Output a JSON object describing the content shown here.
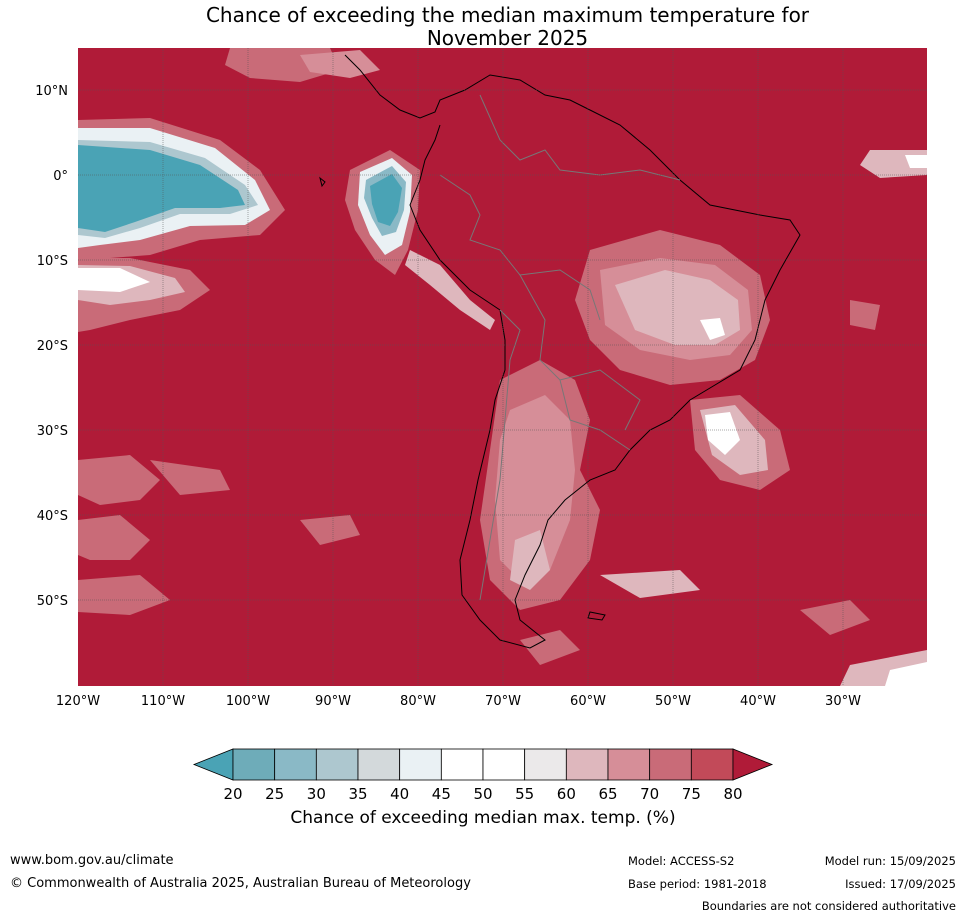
{
  "title": {
    "line1": "Chance of exceeding the median maximum temperature for",
    "line2": "November 2025"
  },
  "map": {
    "lon_ticks": [
      "120°W",
      "110°W",
      "100°W",
      "90°W",
      "80°W",
      "70°W",
      "60°W",
      "50°W",
      "40°W",
      "30°W"
    ],
    "lat_ticks": [
      "10°N",
      "0°",
      "10°S",
      "20°S",
      "30°S",
      "40°S",
      "50°S"
    ]
  },
  "colorbar": {
    "labels": [
      "20",
      "25",
      "30",
      "35",
      "40",
      "45",
      "50",
      "55",
      "60",
      "65",
      "70",
      "75",
      "80"
    ],
    "colors": [
      "#4aa3b5",
      "#6eacb9",
      "#8ab9c6",
      "#adc7cf",
      "#d3d9db",
      "#eaf1f4",
      "#ffffff",
      "#ffffff",
      "#ebe9ea",
      "#deb7bd",
      "#d68e98",
      "#c96b78",
      "#c24a59",
      "#b01b38"
    ],
    "title": "Chance of exceeding median max. temp. (%)"
  },
  "footer": {
    "url": "www.bom.gov.au/climate",
    "copyright": "© Commonwealth of Australia 2025, Australian Bureau of Meteorology",
    "model": "Model: ACCESS-S2",
    "base_period": "Base period: 1981-2018",
    "model_run": "Model run: 15/09/2025",
    "issued": "Issued: 17/09/2025",
    "disclaimer": "Boundaries are not considered authoritative"
  }
}
